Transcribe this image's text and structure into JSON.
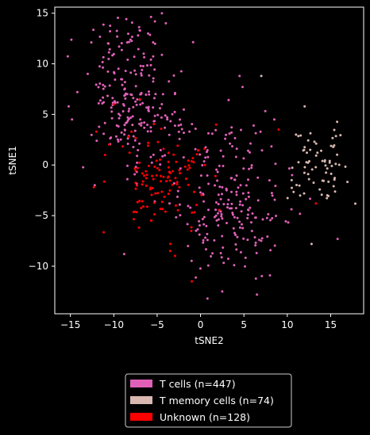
{
  "chart_data": {
    "type": "scatter",
    "xlabel": "tSNE2",
    "ylabel": "tSNE1",
    "xlim": [
      -16.8,
      18.8
    ],
    "ylim": [
      -14.7,
      15.6
    ],
    "xticks": [
      -15,
      -10,
      -5,
      0,
      5,
      10,
      15
    ],
    "yticks": [
      -10,
      -5,
      0,
      5,
      10,
      15
    ],
    "grid": false,
    "legend_position": "bottom-center",
    "background": "#000000",
    "series": [
      {
        "name": "T cells (n=447)",
        "color": "#e060b8",
        "count": 447,
        "clusters": [
          {
            "cx": -8.5,
            "cy": 7.5,
            "sx": 2.6,
            "sy": 3.6,
            "n": 190
          },
          {
            "cx": -5.0,
            "cy": 4.0,
            "sx": 2.5,
            "sy": 2.5,
            "n": 45
          },
          {
            "cx": 3.0,
            "cy": -5.0,
            "sx": 3.3,
            "sy": 3.1,
            "n": 170
          },
          {
            "cx": 4.0,
            "cy": 1.5,
            "sx": 3.0,
            "sy": 2.6,
            "n": 42
          }
        ],
        "extra_points": [
          [
            -15.2,
            5.8
          ],
          [
            -14.2,
            7.2
          ],
          [
            -13.0,
            9.0
          ],
          [
            -12.2,
            -2.0
          ],
          [
            -8.8,
            -8.8
          ],
          [
            -7.2,
            12.8
          ],
          [
            -4.0,
            14.0
          ],
          [
            2.5,
            -12.5
          ],
          [
            0.8,
            -13.2
          ],
          [
            6.5,
            -12.8
          ],
          [
            8.0,
            -10.9
          ],
          [
            15.8,
            -7.3
          ],
          [
            8.5,
            4.5
          ],
          [
            4.5,
            8.8
          ]
        ]
      },
      {
        "name": "T memory cells (n=74)",
        "color": "#d8b8b0",
        "count": 74,
        "clusters": [
          {
            "cx": 13.8,
            "cy": 0.0,
            "sx": 1.7,
            "sy": 1.9,
            "n": 70
          }
        ],
        "extra_points": [
          [
            7.0,
            8.8
          ],
          [
            12.0,
            5.8
          ],
          [
            12.8,
            -7.8
          ],
          [
            10.5,
            -1.5
          ]
        ]
      },
      {
        "name": "Unknown (n=128)",
        "color": "#ff0000",
        "count": 128,
        "clusters": [
          {
            "cx": -4.8,
            "cy": -1.5,
            "sx": 2.8,
            "sy": 2.6,
            "n": 118
          }
        ],
        "extra_points": [
          [
            -12.3,
            -2.2
          ],
          [
            -12.0,
            3.3
          ],
          [
            -11.0,
            1.0
          ],
          [
            -10.0,
            6.0
          ],
          [
            -7.0,
            6.5
          ],
          [
            1.8,
            4.0
          ],
          [
            9.0,
            3.5
          ],
          [
            13.3,
            -3.8
          ],
          [
            -1.0,
            -11.5
          ],
          [
            -3.5,
            -8.5
          ]
        ]
      }
    ]
  }
}
